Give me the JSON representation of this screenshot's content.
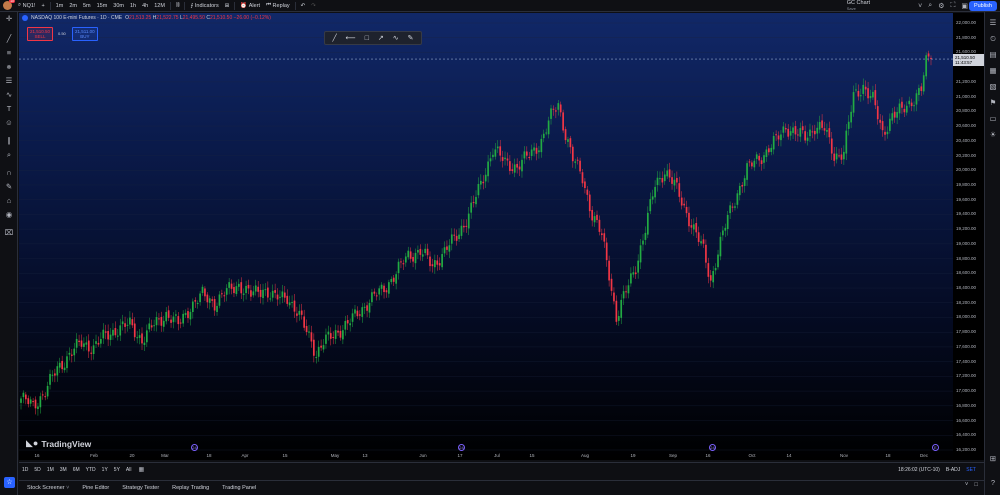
{
  "topbar": {
    "avatar_badge": "10",
    "symbol": "NQ1!",
    "add_symbol": "+",
    "intervals": [
      "1m",
      "2m",
      "5m",
      "15m",
      "30m",
      "1h",
      "4h",
      "12M"
    ],
    "indicators_label": "Indicators",
    "alert_label": "Alert",
    "replay_label": "Replay",
    "layout_name": "GC Chart",
    "layout_status": "Save",
    "publish_label": "Publish"
  },
  "legend": {
    "title": "NASDAQ 100 E-mini Futures · 1D · CME",
    "o_label": "O",
    "o": "21,513.25",
    "h_label": "H",
    "h": "21,522.75",
    "l_label": "L",
    "l": "21,495.50",
    "c_label": "C",
    "c": "21,510.50",
    "change": "−26.00 (−0.12%)",
    "sell_price": "21,510.50",
    "sell_label": "SELL",
    "spread": "0.50",
    "buy_price": "21,511.00",
    "buy_label": "BUY"
  },
  "watermark": "TradingView",
  "event_marks": [
    "24",
    "24",
    "24",
    "E"
  ],
  "price_axis": {
    "ticks": [
      "22,000.00",
      "21,800.00",
      "21,600.00",
      "21,200.00",
      "21,000.00",
      "20,800.00",
      "20,600.00",
      "20,400.00",
      "20,200.00",
      "20,000.00",
      "19,800.00",
      "19,600.00",
      "19,400.00",
      "19,200.00",
      "19,000.00",
      "18,800.00",
      "18,600.00",
      "18,400.00",
      "18,200.00",
      "18,000.00",
      "17,800.00",
      "17,600.00",
      "17,400.00",
      "17,200.00",
      "17,000.00",
      "16,800.00",
      "16,600.00",
      "16,400.00",
      "16,200.00"
    ],
    "current_price": "21,510.50",
    "countdown": "11:43:57"
  },
  "time_axis": {
    "ticks": [
      "16",
      "Feb",
      "20",
      "Mar",
      "18",
      "Apr",
      "15",
      "May",
      "13",
      "Jun",
      "17",
      "Jul",
      "15",
      "Aug",
      "19",
      "Sep",
      "16",
      "Oct",
      "14",
      "Nov",
      "18",
      "Dec"
    ]
  },
  "ranges": [
    "1D",
    "5D",
    "1M",
    "3M",
    "6M",
    "YTD",
    "1Y",
    "5Y",
    "All"
  ],
  "clock": "18:26:02 (UTC-10)",
  "adjust": {
    "label": "B-ADJ",
    "sub": "SET"
  },
  "panel_tabs": [
    "Stock Screener",
    "Pine Editor",
    "Strategy Tester",
    "Replay Trading",
    "Trading Panel"
  ],
  "colors": {
    "up": "#22ab43",
    "down": "#f23645",
    "accent": "#2962ff",
    "grid": "#1b2540"
  },
  "chart_data": {
    "type": "candlestick",
    "title": "NASDAQ 100 E-mini Futures · 1D · CME",
    "xlabel": "",
    "ylabel": "",
    "ylim": [
      16200,
      22000
    ],
    "x_ticks": [
      "16",
      "Feb",
      "20",
      "Mar",
      "18",
      "Apr",
      "15",
      "May",
      "13",
      "Jun",
      "17",
      "Jul",
      "15",
      "Aug",
      "19",
      "Sep",
      "16",
      "Oct",
      "14",
      "Nov",
      "18",
      "Dec"
    ],
    "last_value": 21510.5,
    "series": [
      {
        "name": "NQ1!",
        "close_path": [
          [
            0,
            16900
          ],
          [
            5,
            16800
          ],
          [
            10,
            17000
          ],
          [
            15,
            17300
          ],
          [
            20,
            17500
          ],
          [
            25,
            17650
          ],
          [
            30,
            17600
          ],
          [
            35,
            17750
          ],
          [
            40,
            17850
          ],
          [
            45,
            17900
          ],
          [
            50,
            17700
          ],
          [
            55,
            17900
          ],
          [
            60,
            18050
          ],
          [
            65,
            17900
          ],
          [
            70,
            18150
          ],
          [
            75,
            18300
          ],
          [
            80,
            18200
          ],
          [
            85,
            18350
          ],
          [
            90,
            18450
          ],
          [
            95,
            18300
          ],
          [
            100,
            18400
          ],
          [
            105,
            18250
          ],
          [
            110,
            18300
          ],
          [
            115,
            18000
          ],
          [
            120,
            17700
          ],
          [
            122,
            17500
          ],
          [
            125,
            17650
          ],
          [
            130,
            17800
          ],
          [
            135,
            17900
          ],
          [
            140,
            18100
          ],
          [
            145,
            18250
          ],
          [
            150,
            18400
          ],
          [
            155,
            18600
          ],
          [
            160,
            18850
          ],
          [
            165,
            18900
          ],
          [
            170,
            18700
          ],
          [
            175,
            18900
          ],
          [
            180,
            19100
          ],
          [
            185,
            19400
          ],
          [
            190,
            19800
          ],
          [
            195,
            20300
          ],
          [
            200,
            20100
          ],
          [
            205,
            20050
          ],
          [
            210,
            20200
          ],
          [
            215,
            20400
          ],
          [
            220,
            20800
          ],
          [
            222,
            20900
          ],
          [
            225,
            20500
          ],
          [
            228,
            20150
          ],
          [
            232,
            19900
          ],
          [
            236,
            19400
          ],
          [
            240,
            19100
          ],
          [
            243,
            18600
          ],
          [
            246,
            18000
          ],
          [
            250,
            18350
          ],
          [
            254,
            18700
          ],
          [
            258,
            19200
          ],
          [
            262,
            19800
          ],
          [
            266,
            20000
          ],
          [
            270,
            19800
          ],
          [
            274,
            19500
          ],
          [
            278,
            19200
          ],
          [
            282,
            18900
          ],
          [
            285,
            18500
          ],
          [
            288,
            18900
          ],
          [
            292,
            19350
          ],
          [
            296,
            19700
          ],
          [
            300,
            20000
          ],
          [
            304,
            20150
          ],
          [
            308,
            20250
          ],
          [
            312,
            20400
          ],
          [
            316,
            20600
          ],
          [
            320,
            20500
          ],
          [
            324,
            20450
          ],
          [
            328,
            20600
          ],
          [
            332,
            20550
          ],
          [
            336,
            20200
          ],
          [
            340,
            20250
          ],
          [
            344,
            21000
          ],
          [
            348,
            21150
          ],
          [
            352,
            20950
          ],
          [
            356,
            20500
          ],
          [
            360,
            20750
          ],
          [
            364,
            20800
          ],
          [
            368,
            20950
          ],
          [
            372,
            21100
          ],
          [
            374,
            21450
          ],
          [
            376,
            21550
          ]
        ]
      }
    ]
  }
}
